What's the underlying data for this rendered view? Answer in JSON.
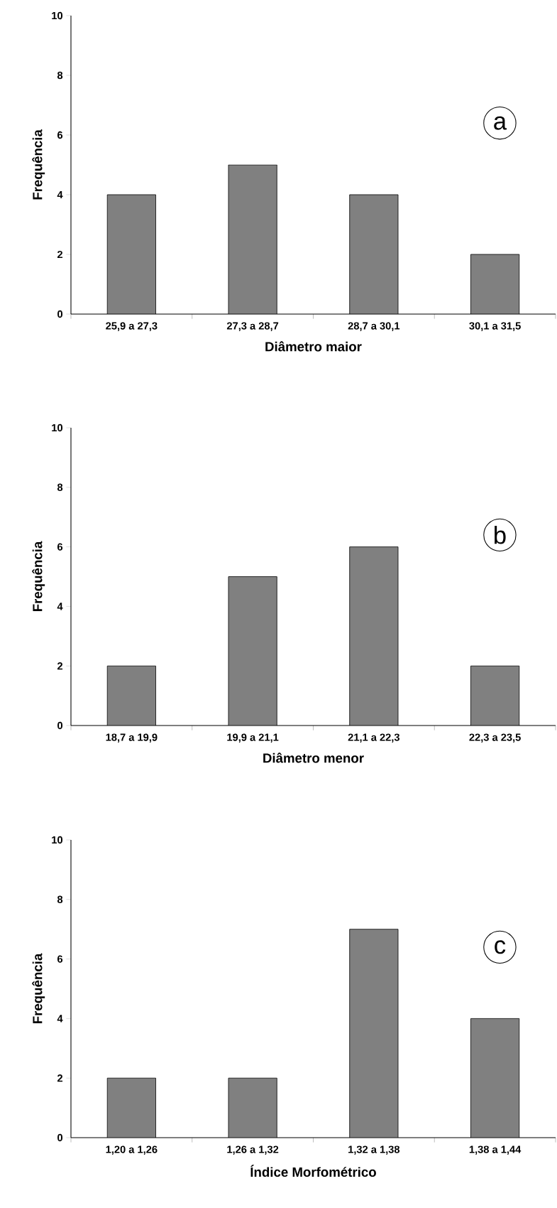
{
  "chart_data": [
    {
      "type": "bar",
      "categories": [
        "25,9 a 27,3",
        "27,3 a 28,7",
        "28,7 a 30,1",
        "30,1 a 31,5"
      ],
      "values": [
        4,
        5,
        4,
        2
      ],
      "color": "#808080",
      "xlabel": "Diâmetro maior",
      "ylabel": "Frequência",
      "ylim": [
        0,
        10
      ],
      "yticks": [
        0,
        2,
        4,
        6,
        8,
        10
      ],
      "annotations": [
        "a"
      ]
    },
    {
      "type": "bar",
      "categories": [
        "18,7 a 19,9",
        "19,9 a 21,1",
        "21,1 a 22,3",
        "22,3 a 23,5"
      ],
      "values": [
        2,
        5,
        6,
        2
      ],
      "color": "#808080",
      "xlabel": "Diâmetro menor",
      "ylabel": "Frequência",
      "ylim": [
        0,
        10
      ],
      "yticks": [
        0,
        2,
        4,
        6,
        8,
        10
      ],
      "annotations": [
        "b"
      ]
    },
    {
      "type": "bar",
      "categories": [
        "1,20 a 1,26",
        "1,26 a 1,32",
        "1,32 a 1,38",
        "1,38 a 1,44"
      ],
      "values": [
        2,
        2,
        7,
        4
      ],
      "color": "#808080",
      "xlabel": "Índice Morfométrico",
      "ylabel": "Frequência",
      "ylim": [
        0,
        10
      ],
      "yticks": [
        0,
        2,
        4,
        6,
        8,
        10
      ],
      "annotations": [
        "c"
      ]
    }
  ]
}
